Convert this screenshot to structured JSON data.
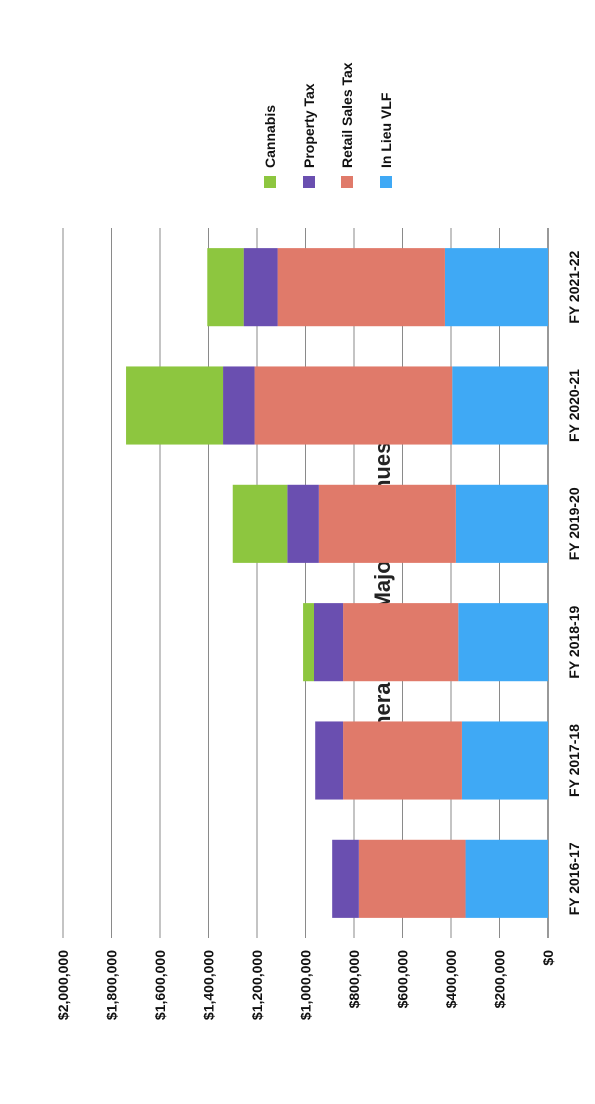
{
  "chart_data": {
    "type": "bar",
    "orientation": "vertical",
    "stacked": true,
    "title": "General Fund Major Revenues",
    "xlabel": "",
    "ylabel": "",
    "categories": [
      "FY 2016-17",
      "FY 2017-18",
      "FY 2018-19",
      "FY 2019-20",
      "FY 2020-21",
      "FY 2021-22"
    ],
    "series": [
      {
        "name": "In Lieu VLF",
        "color": "#3fa9f5",
        "values": [
          340000,
          355000,
          370000,
          380000,
          395000,
          425000
        ]
      },
      {
        "name": "Retail Sales Tax",
        "color": "#e07a6a",
        "values": [
          440000,
          490000,
          475000,
          565000,
          815000,
          690000
        ]
      },
      {
        "name": "Property Tax",
        "color": "#6a4fb0",
        "values": [
          110000,
          115000,
          120000,
          130000,
          130000,
          140000
        ]
      },
      {
        "name": "Cannabis",
        "color": "#8dc63f",
        "values": [
          0,
          0,
          45000,
          225000,
          400000,
          150000
        ]
      }
    ],
    "ylim": [
      0,
      2000000
    ],
    "yticks": [
      "$0",
      "$200,000",
      "$400,000",
      "$600,000",
      "$800,000",
      "$1,000,000",
      "$1,200,000",
      "$1,400,000",
      "$1,600,000",
      "$1,800,000",
      "$2,000,000"
    ],
    "grid": true,
    "legend_position": "right",
    "legend_order": [
      "Cannabis",
      "Property Tax",
      "Retail Sales Tax",
      "In Lieu VLF"
    ]
  }
}
